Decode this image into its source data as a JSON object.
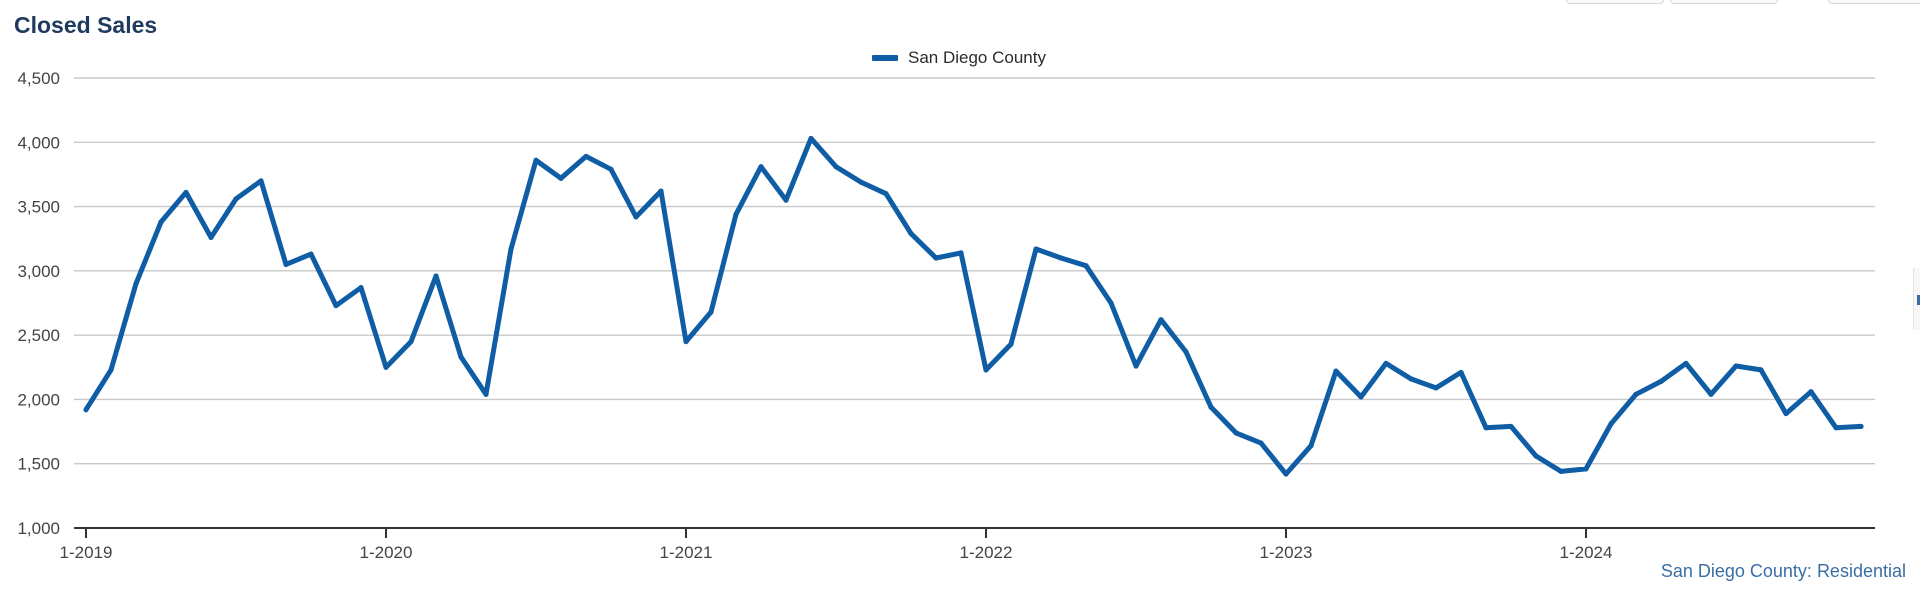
{
  "header": {
    "title": "Closed Sales"
  },
  "footer": {
    "source": "San Diego County: Residential"
  },
  "colors": {
    "line": "#0f5da4",
    "grid": "#c8c8c8",
    "axis": "#333333",
    "title": "#1f3a5f"
  },
  "chart_data": {
    "type": "line",
    "title": "Closed Sales",
    "xlabel": "",
    "ylabel": "",
    "ylim": [
      1000,
      4500
    ],
    "y_ticks": [
      1000,
      1500,
      2000,
      2500,
      3000,
      3500,
      4000,
      4500
    ],
    "y_tick_labels": [
      "1,000",
      "1,500",
      "2,000",
      "2,500",
      "3,000",
      "3,500",
      "4,000",
      "4,500"
    ],
    "x_tick_labels": [
      "1-2019",
      "1-2020",
      "1-2021",
      "1-2022",
      "1-2023",
      "1-2024"
    ],
    "grid": true,
    "legend_position": "top-center",
    "series": [
      {
        "name": "San Diego County",
        "color": "#0f5da4",
        "values": [
          1920,
          2230,
          2900,
          3380,
          3610,
          3260,
          3560,
          3700,
          3050,
          3130,
          2730,
          2870,
          2250,
          2450,
          2960,
          2330,
          2040,
          3170,
          3860,
          3720,
          3890,
          3790,
          3420,
          3620,
          2450,
          2680,
          3440,
          3810,
          3550,
          4030,
          3810,
          3690,
          3600,
          3290,
          3100,
          3140,
          2230,
          2430,
          3170,
          3100,
          3040,
          2750,
          2260,
          2620,
          2370,
          1940,
          1740,
          1660,
          1420,
          1640,
          2220,
          2020,
          2280,
          2160,
          2090,
          2210,
          1780,
          1790,
          1560,
          1440,
          1460,
          1810,
          2040,
          2140,
          2280,
          2040,
          2260,
          2230,
          1890,
          2060,
          1780,
          1790
        ]
      }
    ]
  }
}
